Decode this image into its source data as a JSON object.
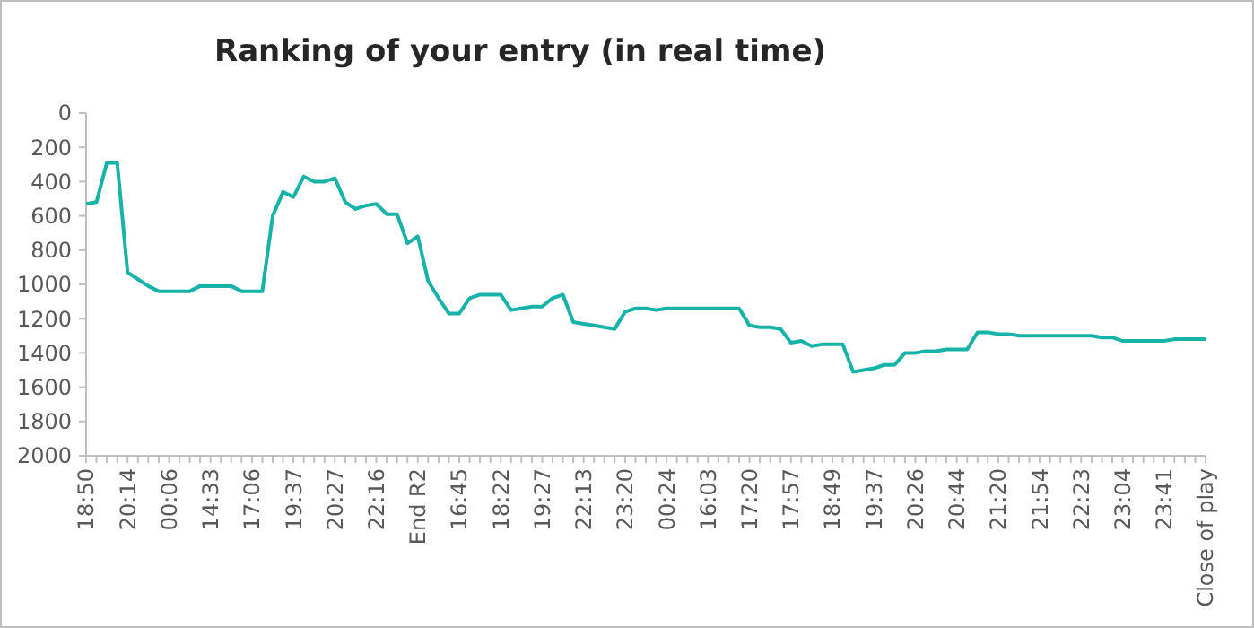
{
  "chart_data": {
    "type": "line",
    "title": "Ranking of your entry (in real time)",
    "categories": [
      "18:50",
      null,
      null,
      null,
      "20:14",
      null,
      null,
      null,
      "00:06",
      null,
      null,
      null,
      "14:33",
      null,
      null,
      null,
      "17:06",
      null,
      null,
      null,
      "19:37",
      null,
      null,
      null,
      "20:27",
      null,
      null,
      null,
      "22:16",
      null,
      null,
      null,
      "End R2",
      null,
      null,
      null,
      "16:45",
      null,
      null,
      null,
      "18:22",
      null,
      null,
      null,
      "19:27",
      null,
      null,
      null,
      "22:13",
      null,
      null,
      null,
      "23:20",
      null,
      null,
      null,
      "00:24",
      null,
      null,
      null,
      "16:03",
      null,
      null,
      null,
      "17:20",
      null,
      null,
      null,
      "17:57",
      null,
      null,
      null,
      "18:49",
      null,
      null,
      null,
      "19:37",
      null,
      null,
      null,
      "20:26",
      null,
      null,
      null,
      "20:44",
      null,
      null,
      null,
      "21:20",
      null,
      null,
      null,
      "21:54",
      null,
      null,
      null,
      "22:23",
      null,
      null,
      null,
      "23:04",
      null,
      null,
      null,
      "23:41",
      null,
      null,
      null,
      "Close of play"
    ],
    "series": [
      {
        "color": "#17b2a8",
        "values": [
          530,
          520,
          290,
          290,
          930,
          970,
          1010,
          1040,
          1040,
          1040,
          1040,
          1010,
          1010,
          1010,
          1010,
          1040,
          1040,
          1040,
          600,
          460,
          490,
          370,
          400,
          400,
          380,
          520,
          560,
          540,
          530,
          590,
          590,
          760,
          720,
          980,
          1080,
          1170,
          1170,
          1080,
          1060,
          1060,
          1060,
          1150,
          1140,
          1130,
          1130,
          1080,
          1060,
          1220,
          1230,
          1240,
          1250,
          1260,
          1160,
          1140,
          1140,
          1150,
          1140,
          1140,
          1140,
          1140,
          1140,
          1140,
          1140,
          1140,
          1240,
          1250,
          1250,
          1260,
          1340,
          1330,
          1360,
          1350,
          1350,
          1350,
          1510,
          1500,
          1490,
          1470,
          1470,
          1400,
          1400,
          1390,
          1390,
          1380,
          1380,
          1380,
          1280,
          1280,
          1290,
          1290,
          1300,
          1300,
          1300,
          1300,
          1300,
          1300,
          1300,
          1300,
          1310,
          1310,
          1330,
          1330,
          1330,
          1330,
          1330,
          1320,
          1320,
          1320,
          1320
        ]
      }
    ],
    "ylim": [
      2000,
      0
    ],
    "yticks": [
      0,
      200,
      400,
      600,
      800,
      1000,
      1200,
      1400,
      1600,
      1800,
      2000
    ],
    "grid": false,
    "marker": "none",
    "line_style": "solid"
  }
}
